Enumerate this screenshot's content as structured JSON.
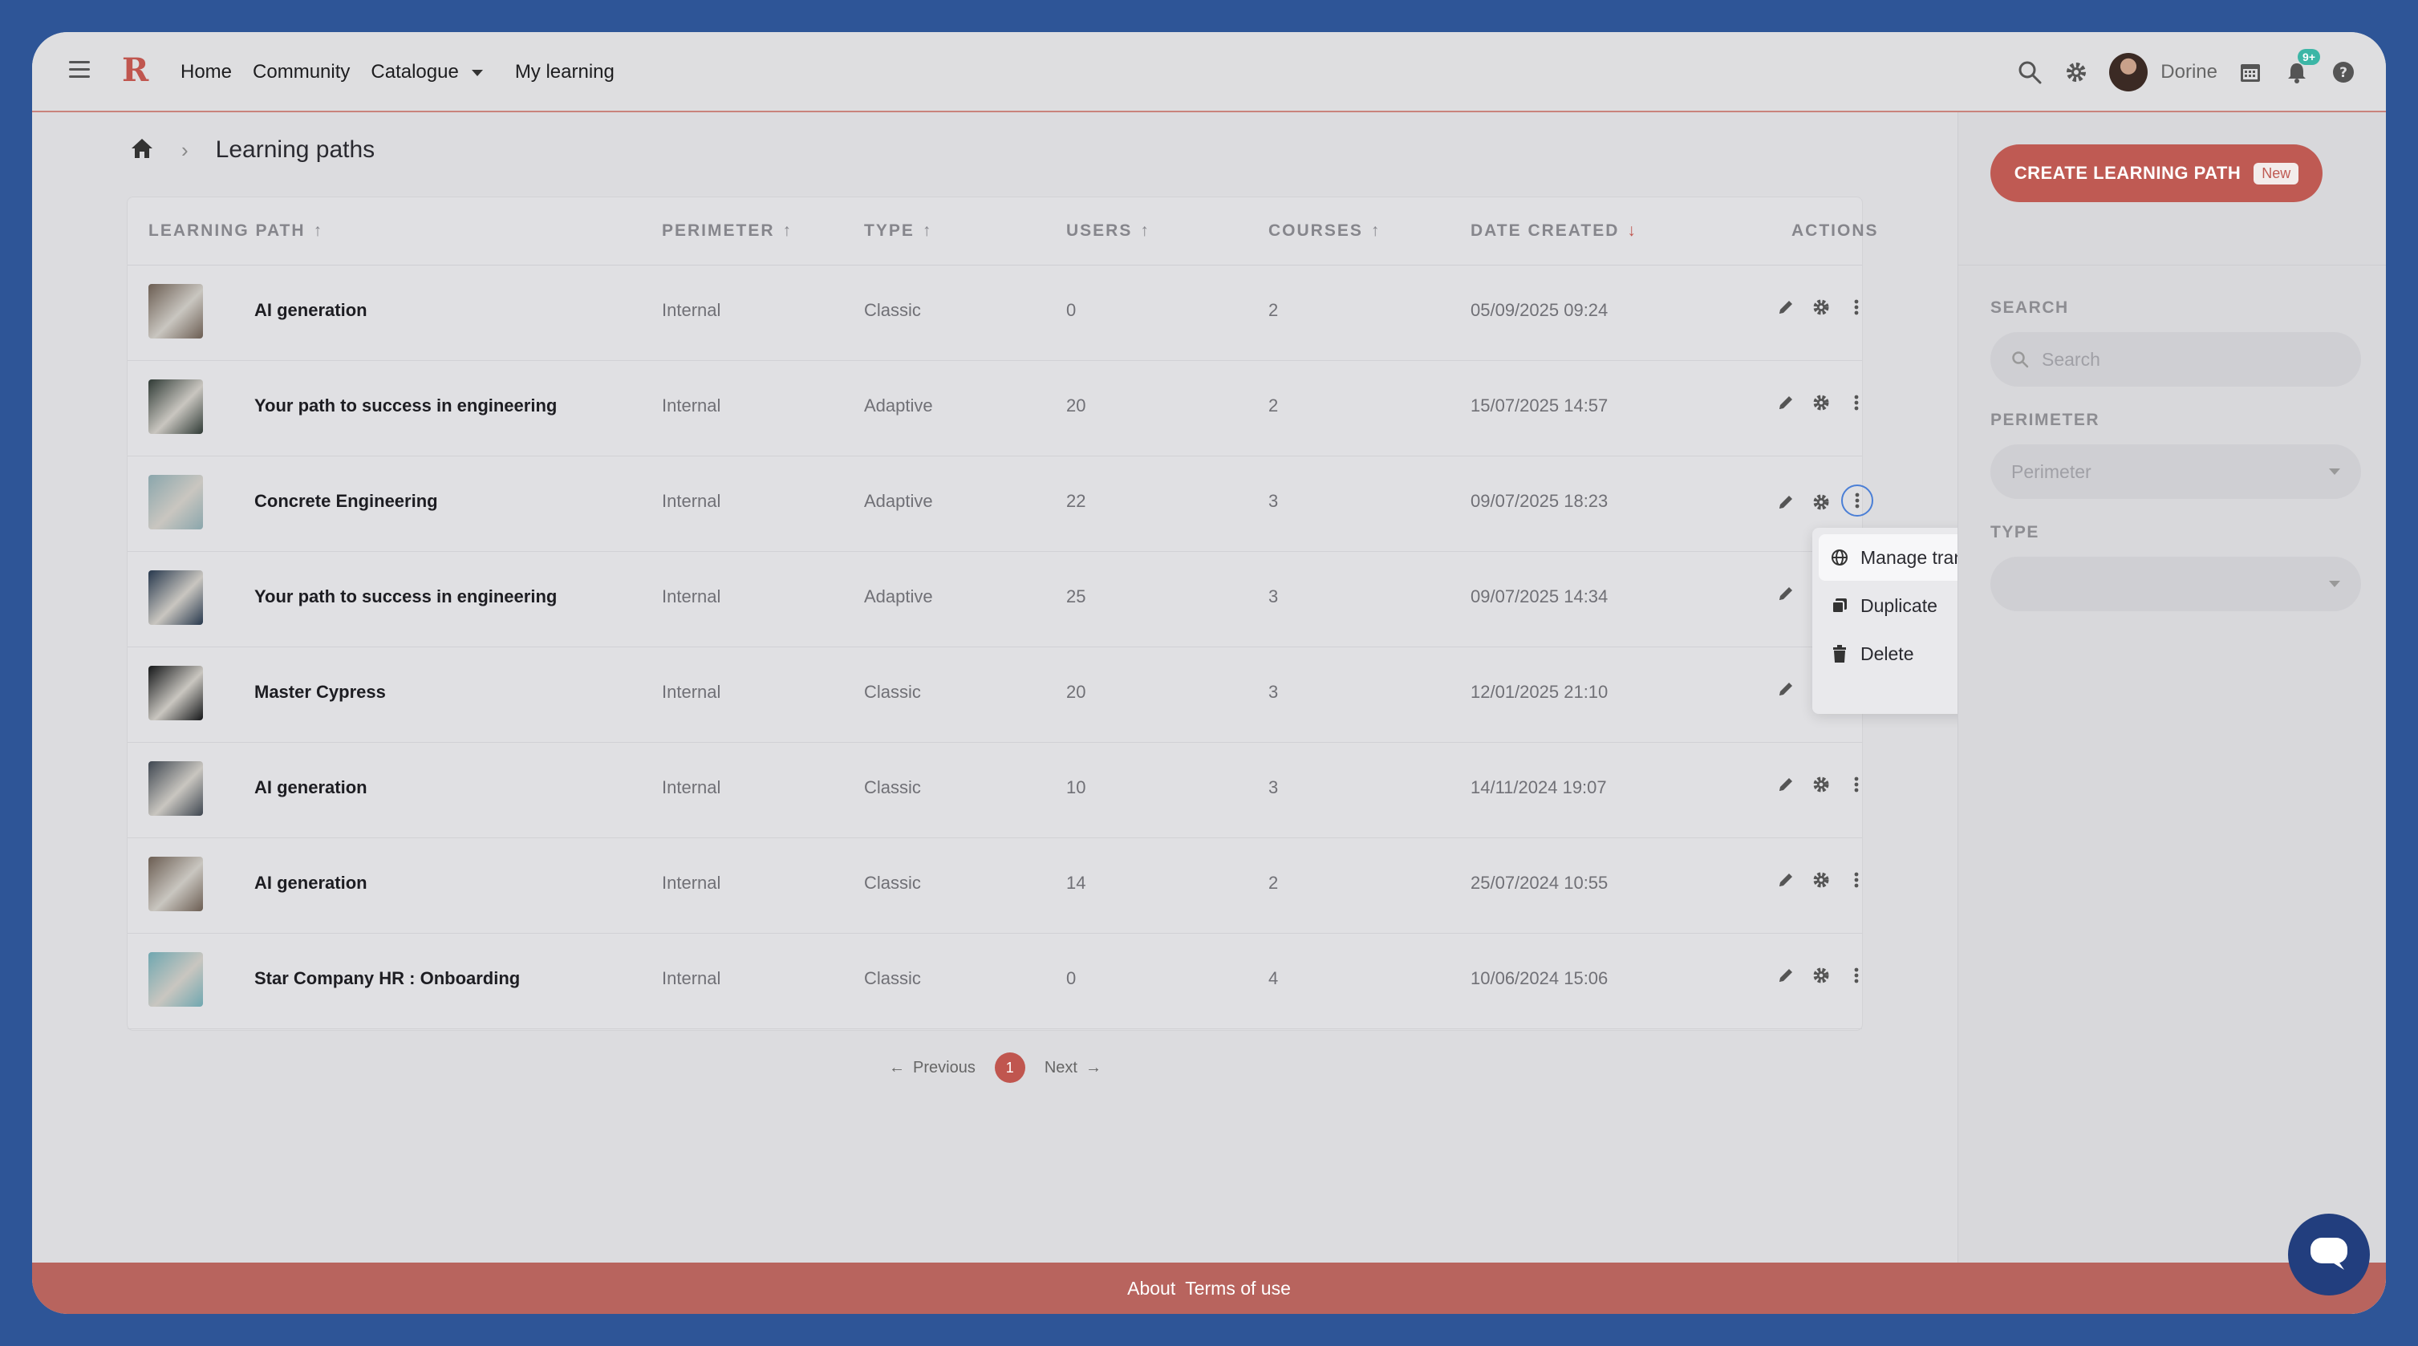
{
  "nav": {
    "logo": "R",
    "items": [
      "Home",
      "Community",
      "Catalogue",
      "My learning"
    ],
    "username": "Dorine",
    "notification_badge": "9+"
  },
  "breadcrumb": {
    "title": "Learning paths"
  },
  "table": {
    "columns": {
      "learning_path": "LEARNING PATH",
      "perimeter": "PERIMETER",
      "type": "TYPE",
      "users": "USERS",
      "courses": "COURSES",
      "date_created": "DATE CREATED",
      "actions": "ACTIONS"
    },
    "rows": [
      {
        "name": "AI generation",
        "perimeter": "Internal",
        "type": "Classic",
        "users": "0",
        "courses": "2",
        "date": "05/09/2025 09:24",
        "thumb": "#6b5d52"
      },
      {
        "name": "Your path to success in engineering",
        "perimeter": "Internal",
        "type": "Adaptive",
        "users": "20",
        "courses": "2",
        "date": "15/07/2025 14:57",
        "thumb": "#2f3a35"
      },
      {
        "name": "Concrete Engineering",
        "perimeter": "Internal",
        "type": "Adaptive",
        "users": "22",
        "courses": "3",
        "date": "09/07/2025 18:23",
        "thumb": "#8aa6ac"
      },
      {
        "name": "Your path to success in engineering",
        "perimeter": "Internal",
        "type": "Adaptive",
        "users": "25",
        "courses": "3",
        "date": "09/07/2025 14:34",
        "thumb": "#27384d"
      },
      {
        "name": "Master Cypress",
        "perimeter": "Internal",
        "type": "Classic",
        "users": "20",
        "courses": "3",
        "date": "12/01/2025 21:10",
        "thumb": "#141618"
      },
      {
        "name": "AI generation",
        "perimeter": "Internal",
        "type": "Classic",
        "users": "10",
        "courses": "3",
        "date": "14/11/2024 19:07",
        "thumb": "#3e4650"
      },
      {
        "name": "AI generation",
        "perimeter": "Internal",
        "type": "Classic",
        "users": "14",
        "courses": "2",
        "date": "25/07/2024 10:55",
        "thumb": "#6b5d52"
      },
      {
        "name": "Star Company HR : Onboarding",
        "perimeter": "Internal",
        "type": "Classic",
        "users": "0",
        "courses": "4",
        "date": "10/06/2024 15:06",
        "thumb": "#6fa7b0"
      }
    ]
  },
  "pager": {
    "previous": "Previous",
    "page": "1",
    "next": "Next"
  },
  "menu": {
    "items": [
      "Manage translations",
      "Duplicate",
      "Delete"
    ]
  },
  "panel": {
    "create_label": "CREATE LEARNING PATH",
    "new_tag": "New",
    "search_label": "SEARCH",
    "search_placeholder": "Search",
    "perimeter_label": "PERIMETER",
    "perimeter_placeholder": "Perimeter",
    "type_label": "TYPE"
  },
  "footer": {
    "about": "About",
    "terms": "Terms of use"
  },
  "colors": {
    "accent": "#c0564f",
    "nav_blue": "#2e5597",
    "chat": "#223e7e"
  }
}
